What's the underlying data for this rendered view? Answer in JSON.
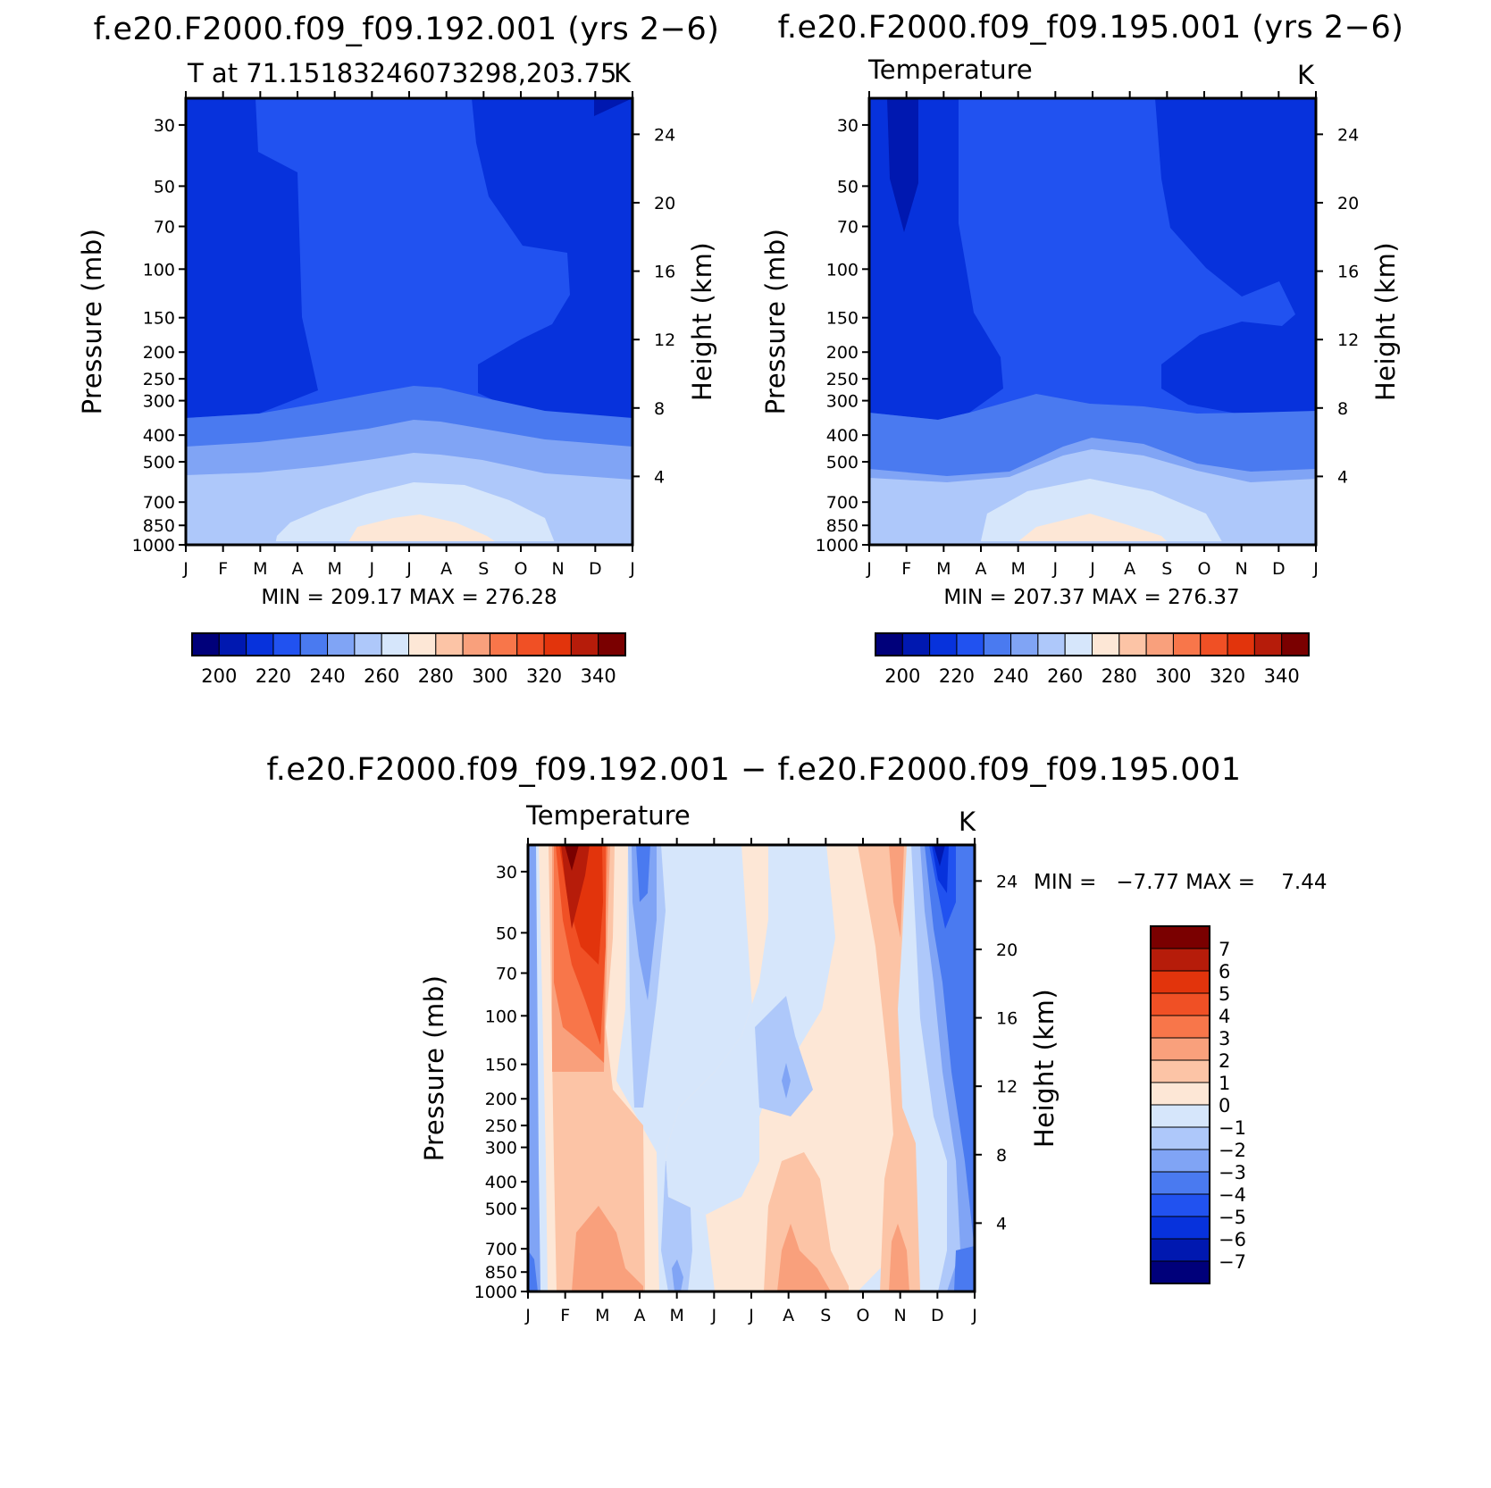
{
  "chart_data": [
    {
      "type": "heatmap",
      "title": "f.e20.F2000.f09_f09.192.001 (yrs 2−6)",
      "subtitle_left": "T at 71.15183246073298,203.75",
      "subtitle_right": "K",
      "ylabel": "Pressure (mb)",
      "ylabel_right": "Height (km)",
      "x_ticks": [
        "J",
        "F",
        "M",
        "A",
        "M",
        "J",
        "J",
        "A",
        "S",
        "O",
        "N",
        "D",
        "J"
      ],
      "y_ticks": [
        "30",
        "50",
        "70",
        "100",
        "150",
        "200",
        "250",
        "300",
        "400",
        "500",
        "700",
        "850",
        "1000"
      ],
      "y_tick_values": [
        30,
        50,
        70,
        100,
        150,
        200,
        250,
        300,
        400,
        500,
        700,
        850,
        1000
      ],
      "y_right_ticks": [
        "24",
        "20",
        "16",
        "12",
        "8",
        "4"
      ],
      "y_right_tick_values": [
        24,
        20,
        16,
        12,
        8,
        4
      ],
      "ylim": [
        1000,
        24
      ],
      "stats": "MIN = 209.17 MAX = 276.28",
      "colorbar_levels": [
        200,
        220,
        240,
        260,
        280,
        300,
        320,
        340
      ],
      "colorbar_labels": [
        "200",
        "220",
        "240",
        "260",
        "280",
        "300",
        "320",
        "340"
      ],
      "min": 209.17,
      "max": 276.28
    },
    {
      "type": "heatmap",
      "title": "f.e20.F2000.f09_f09.195.001 (yrs 2−6)",
      "subtitle_left": "Temperature",
      "subtitle_right": "K",
      "ylabel": "Pressure (mb)",
      "ylabel_right": "Height (km)",
      "x_ticks": [
        "J",
        "F",
        "M",
        "A",
        "M",
        "J",
        "J",
        "A",
        "S",
        "O",
        "N",
        "D",
        "J"
      ],
      "y_ticks": [
        "30",
        "50",
        "70",
        "100",
        "150",
        "200",
        "250",
        "300",
        "400",
        "500",
        "700",
        "850",
        "1000"
      ],
      "y_tick_values": [
        30,
        50,
        70,
        100,
        150,
        200,
        250,
        300,
        400,
        500,
        700,
        850,
        1000
      ],
      "y_right_ticks": [
        "24",
        "20",
        "16",
        "12",
        "8",
        "4"
      ],
      "y_right_tick_values": [
        24,
        20,
        16,
        12,
        8,
        4
      ],
      "ylim": [
        1000,
        24
      ],
      "stats": "MIN = 207.37 MAX = 276.37",
      "colorbar_levels": [
        200,
        220,
        240,
        260,
        280,
        300,
        320,
        340
      ],
      "colorbar_labels": [
        "200",
        "220",
        "240",
        "260",
        "280",
        "300",
        "320",
        "340"
      ],
      "min": 207.37,
      "max": 276.37
    },
    {
      "type": "heatmap",
      "title": "f.e20.F2000.f09_f09.192.001 − f.e20.F2000.f09_f09.195.001",
      "subtitle_left": "Temperature",
      "subtitle_right": "K",
      "ylabel": "Pressure (mb)",
      "ylabel_right": "Height (km)",
      "x_ticks": [
        "J",
        "F",
        "M",
        "A",
        "M",
        "J",
        "J",
        "A",
        "S",
        "O",
        "N",
        "D",
        "J"
      ],
      "y_ticks": [
        "30",
        "50",
        "70",
        "100",
        "150",
        "200",
        "250",
        "300",
        "400",
        "500",
        "700",
        "850",
        "1000"
      ],
      "y_tick_values": [
        30,
        50,
        70,
        100,
        150,
        200,
        250,
        300,
        400,
        500,
        700,
        850,
        1000
      ],
      "y_right_ticks": [
        "24",
        "20",
        "16",
        "12",
        "8",
        "4"
      ],
      "y_right_tick_values": [
        24,
        20,
        16,
        12,
        8,
        4
      ],
      "ylim": [
        1000,
        24
      ],
      "stats": "MIN =   −7.77 MAX =    7.44",
      "colorbar_levels": [
        7,
        6,
        5,
        4,
        3,
        2,
        1,
        0,
        -1,
        -2,
        -3,
        -4,
        -5,
        -6,
        -7
      ],
      "colorbar_labels": [
        "7",
        "6",
        "5",
        "4",
        "3",
        "2",
        "1",
        "0",
        "−1",
        "−2",
        "−3",
        "−4",
        "−5",
        "−6",
        "−7"
      ],
      "min": -7.77,
      "max": 7.44
    }
  ],
  "colors": {
    "temp_scale": [
      "#00007a",
      "#0018b0",
      "#0732dc",
      "#2152f0",
      "#4a7af0",
      "#80a4f5",
      "#aec8fa",
      "#d6e6fb",
      "#fde7d6",
      "#fcc4a6",
      "#f9a07c",
      "#f8764a",
      "#f05025",
      "#e2340c",
      "#b61c0a",
      "#7a0000"
    ],
    "diff_scale": [
      "#7a0000",
      "#b61c0a",
      "#e2340c",
      "#f05025",
      "#f8764a",
      "#f9a07c",
      "#fcc4a6",
      "#fde7d6",
      "#d6e6fb",
      "#aec8fa",
      "#80a4f5",
      "#4a7af0",
      "#2152f0",
      "#0732dc",
      "#0018b0",
      "#00007a"
    ]
  }
}
